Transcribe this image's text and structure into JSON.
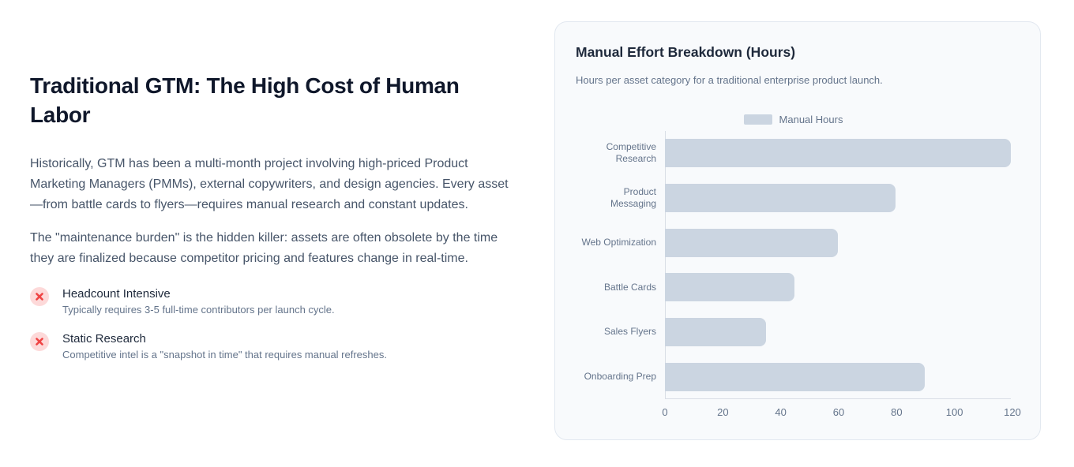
{
  "left": {
    "heading": "Traditional GTM: The High Cost of Human Labor",
    "paragraphs": [
      "Historically, GTM has been a multi-month project involving high-priced Product Marketing Managers (PMMs), external copywriters, and design agencies. Every asset—from battle cards to flyers—requires manual research and constant updates.",
      "The \"maintenance burden\" is the hidden killer: assets are often obsolete by the time they are finalized because competitor pricing and features change in real-time."
    ],
    "bullets": [
      {
        "icon": "x-circle-icon",
        "title": "Headcount Intensive",
        "description": "Typically requires 3-5 full-time contributors per launch cycle."
      },
      {
        "icon": "x-circle-icon",
        "title": "Static Research",
        "description": "Competitive intel is a \"snapshot in time\" that requires manual refreshes."
      }
    ]
  },
  "chart_card": {
    "title": "Manual Effort Breakdown (Hours)",
    "subtitle": "Hours per asset category for a traditional enterprise product launch.",
    "legend": [
      {
        "label": "Manual Hours",
        "color": "#cbd5e1"
      }
    ]
  },
  "chart_data": {
    "type": "bar",
    "orientation": "horizontal",
    "title": "Manual Effort Breakdown (Hours)",
    "xlabel": "",
    "ylabel": "",
    "categories": [
      "Competitive Research",
      "Product Messaging",
      "Web Optimization",
      "Battle Cards",
      "Sales Flyers",
      "Onboarding Prep"
    ],
    "series": [
      {
        "name": "Manual Hours",
        "color": "#cbd5e1",
        "values": [
          120,
          80,
          60,
          45,
          35,
          90
        ]
      }
    ],
    "xlim": [
      0,
      120
    ],
    "xticks": [
      0,
      20,
      40,
      60,
      80,
      100,
      120
    ],
    "grid": false,
    "legend_position": "top-center"
  },
  "colors": {
    "page_background": "#ffffff",
    "heading": "#0f172a",
    "body_text": "#475569",
    "muted_text": "#64748b",
    "card_background": "#f8fafc",
    "card_border": "#e2e8f0",
    "bar_fill": "#cbd5e1",
    "error_icon": "#ef4444",
    "error_icon_background": "#fdd9d9"
  }
}
